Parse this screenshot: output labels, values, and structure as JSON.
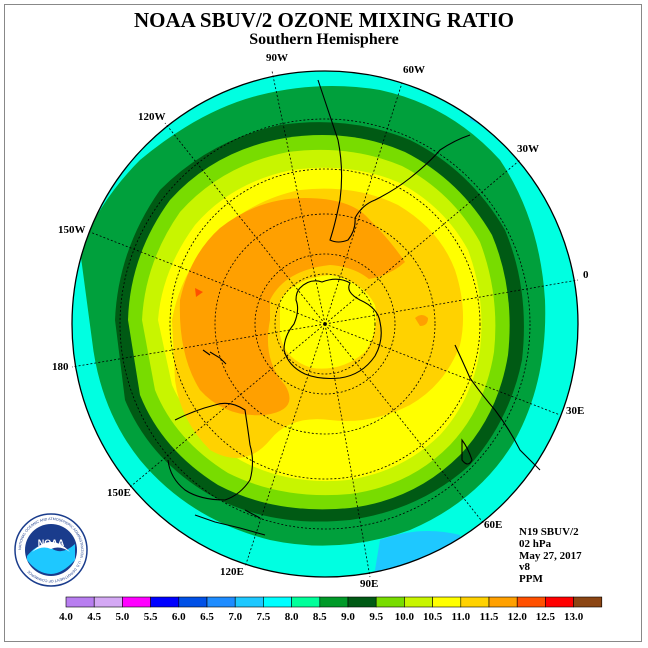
{
  "header": {
    "title": "NOAA SBUV/2 OZONE MIXING RATIO",
    "subtitle": "Southern Hemisphere"
  },
  "longitude_labels": [
    "90W",
    "60W",
    "30W",
    "0",
    "30E",
    "60E",
    "90E",
    "120E",
    "150E",
    "180",
    "150W",
    "120W"
  ],
  "info": {
    "instrument": "N19 SBUV/2",
    "level": "02 hPa",
    "date": "May 27, 2017",
    "version": "v8",
    "units": "PPM"
  },
  "logo": {
    "text": "NOAA",
    "ring_text": "NATIONAL OCEANIC AND ATMOSPHERIC ADMINISTRATION · U.S. DEPARTMENT OF COMMERCE"
  },
  "colorbar": {
    "ticks": [
      "4.0",
      "4.5",
      "5.0",
      "5.5",
      "6.0",
      "6.5",
      "7.0",
      "7.5",
      "8.0",
      "8.5",
      "9.0",
      "9.5",
      "10.0",
      "10.5",
      "11.0",
      "11.5",
      "12.0",
      "12.5",
      "13.0"
    ],
    "colors": [
      "#b87ef0",
      "#d4a8f4",
      "#ff00ff",
      "#0000ff",
      "#0050e6",
      "#1e8cff",
      "#1ec8ff",
      "#00ffff",
      "#00ff9a",
      "#009a28",
      "#005a14",
      "#78dc00",
      "#c8f500",
      "#ffff00",
      "#ffd200",
      "#ffa000",
      "#ff5000",
      "#ff0000",
      "#8b4513"
    ]
  }
}
